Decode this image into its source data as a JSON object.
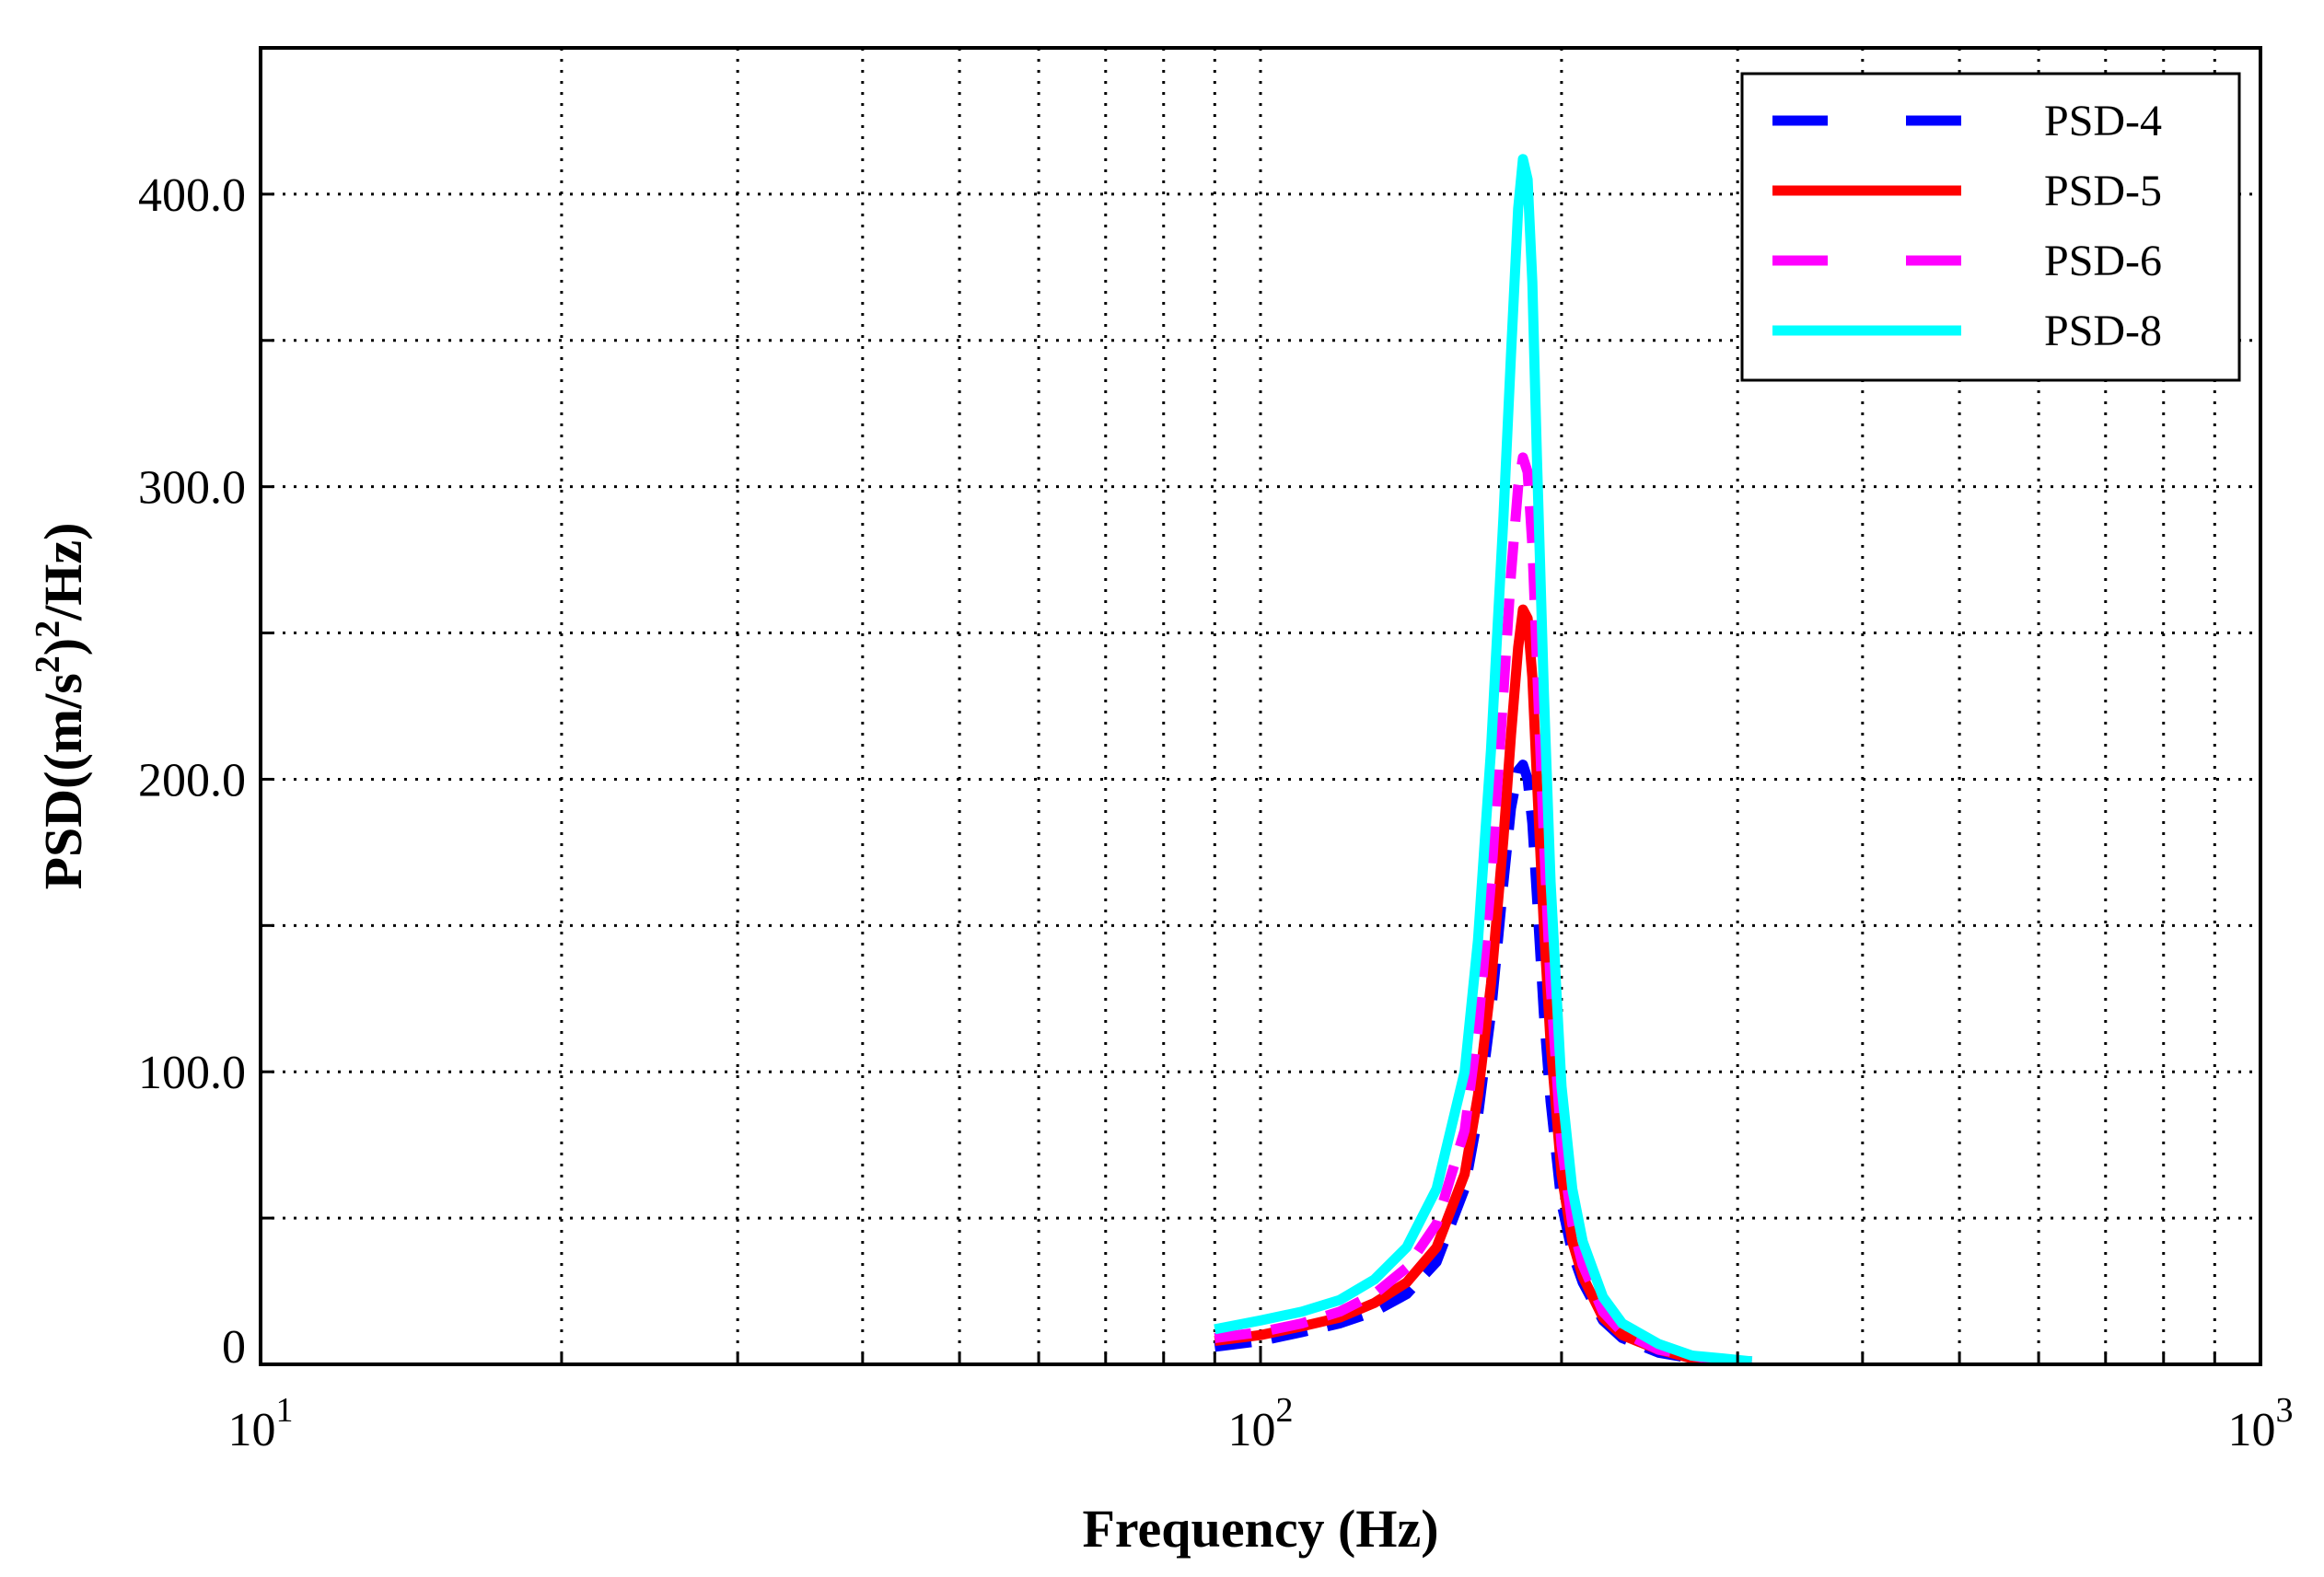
{
  "chart_data": {
    "type": "line",
    "xlabel": "Frequency (Hz)",
    "ylabel_base": "PSD((m/s",
    "ylabel_sup1": "2",
    "ylabel_mid": ")",
    "ylabel_sup2": "2",
    "ylabel_end": "/Hz)",
    "xscale": "log",
    "xlim": [
      10,
      1000
    ],
    "ylim": [
      0,
      450
    ],
    "grid": true,
    "legend_position": "top-right",
    "x_ticks": [
      {
        "value": 10,
        "base": "10",
        "exp": "1"
      },
      {
        "value": 100,
        "base": "10",
        "exp": "2"
      },
      {
        "value": 1000,
        "base": "10",
        "exp": "3"
      }
    ],
    "y_ticks": [
      {
        "value": 0,
        "label": "0"
      },
      {
        "value": 100,
        "label": "100.0"
      },
      {
        "value": 200,
        "label": "200.0"
      },
      {
        "value": 300,
        "label": "300.0"
      },
      {
        "value": 400,
        "label": "400.0"
      }
    ],
    "y_minor_grid": [
      50,
      150,
      250,
      350
    ],
    "series": [
      {
        "name": "PSD-4",
        "color": "#0000ff",
        "style": "dashed",
        "x": [
          90,
          100,
          110,
          120,
          130,
          140,
          150,
          160,
          165,
          170,
          175,
          178,
          181,
          183,
          185,
          187,
          189,
          192,
          195,
          200,
          205,
          210,
          220,
          230,
          250,
          270,
          290,
          310
        ],
        "y": [
          6,
          8,
          11,
          14,
          18,
          24,
          35,
          60,
          85,
          120,
          165,
          190,
          203,
          205,
          200,
          185,
          160,
          120,
          90,
          55,
          38,
          28,
          15,
          9,
          4,
          2,
          1,
          1
        ]
      },
      {
        "name": "PSD-5",
        "color": "#ff0000",
        "style": "solid",
        "x": [
          90,
          100,
          110,
          120,
          130,
          140,
          150,
          160,
          165,
          170,
          175,
          178,
          181,
          183,
          185,
          187,
          189,
          192,
          195,
          200,
          205,
          210,
          220,
          230,
          250,
          270,
          290,
          310
        ],
        "y": [
          8,
          10,
          13,
          16,
          21,
          28,
          40,
          65,
          92,
          130,
          180,
          215,
          245,
          258,
          255,
          235,
          200,
          150,
          110,
          65,
          42,
          30,
          16,
          10,
          5,
          2,
          1,
          1
        ]
      },
      {
        "name": "PSD-6",
        "color": "#ff00ff",
        "style": "dashed",
        "x": [
          90,
          100,
          110,
          120,
          130,
          140,
          150,
          160,
          165,
          170,
          175,
          178,
          181,
          183,
          185,
          187,
          189,
          192,
          195,
          200,
          205,
          210,
          220,
          230,
          250,
          270,
          290,
          310
        ],
        "y": [
          9,
          11,
          14,
          18,
          24,
          33,
          48,
          80,
          115,
          165,
          230,
          270,
          300,
          310,
          305,
          280,
          240,
          180,
          130,
          75,
          48,
          34,
          18,
          11,
          5,
          3,
          1,
          1
        ]
      },
      {
        "name": "PSD-8",
        "color": "#00ffff",
        "style": "solid",
        "x": [
          90,
          100,
          110,
          120,
          130,
          140,
          150,
          160,
          165,
          170,
          175,
          178,
          181,
          183,
          185,
          187,
          189,
          192,
          195,
          200,
          205,
          210,
          220,
          230,
          250,
          270,
          290,
          310
        ],
        "y": [
          12,
          15,
          18,
          22,
          29,
          40,
          60,
          100,
          145,
          210,
          290,
          345,
          395,
          412,
          405,
          370,
          310,
          230,
          165,
          95,
          60,
          42,
          23,
          14,
          7,
          3,
          2,
          1
        ]
      }
    ]
  }
}
